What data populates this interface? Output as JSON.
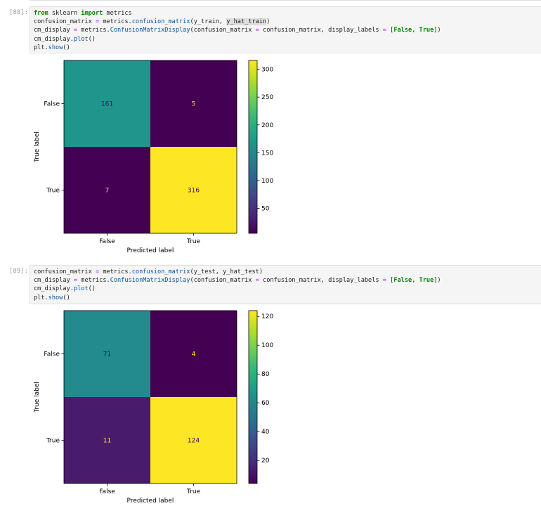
{
  "cells": [
    {
      "prompt": "[88]:",
      "code": [
        [
          [
            "kw",
            "from"
          ],
          [
            "t",
            " sklearn "
          ],
          [
            "kw",
            "import"
          ],
          [
            "t",
            " metrics"
          ]
        ],
        [
          [
            "t",
            "confusion_matrix "
          ],
          [
            "op",
            "="
          ],
          [
            "t",
            " metrics."
          ],
          [
            "fn",
            "confusion_matrix"
          ],
          [
            "t",
            "(y_train, "
          ],
          [
            "hl",
            "y_hat_train"
          ],
          [
            "t",
            ")"
          ]
        ],
        [
          [
            "t",
            "cm_display "
          ],
          [
            "op",
            "="
          ],
          [
            "t",
            " metrics."
          ],
          [
            "fn",
            "ConfusionMatrixDisplay"
          ],
          [
            "t",
            "(confusion_matrix "
          ],
          [
            "op",
            "="
          ],
          [
            "t",
            " confusion_matrix, display_labels "
          ],
          [
            "op",
            "="
          ],
          [
            "t",
            " ["
          ],
          [
            "kw",
            "False"
          ],
          [
            "t",
            ", "
          ],
          [
            "kw",
            "True"
          ],
          [
            "t",
            "])"
          ]
        ],
        [
          [
            "t",
            "cm_display."
          ],
          [
            "fn",
            "plot"
          ],
          [
            "t",
            "()"
          ]
        ],
        [
          [
            "t",
            "plt."
          ],
          [
            "fn",
            "show"
          ],
          [
            "t",
            "()"
          ]
        ]
      ]
    },
    {
      "prompt": "[89]:",
      "code": [
        [
          [
            "t",
            "confusion_matrix "
          ],
          [
            "op",
            "="
          ],
          [
            "t",
            " metrics."
          ],
          [
            "fn",
            "confusion_matrix"
          ],
          [
            "t",
            "(y_test, y_hat_test)"
          ]
        ],
        [
          [
            "t",
            "cm_display "
          ],
          [
            "op",
            "="
          ],
          [
            "t",
            " metrics."
          ],
          [
            "fn",
            "ConfusionMatrixDisplay"
          ],
          [
            "t",
            "(confusion_matrix "
          ],
          [
            "op",
            "="
          ],
          [
            "t",
            " confusion_matrix, display_labels "
          ],
          [
            "op",
            "="
          ],
          [
            "t",
            " ["
          ],
          [
            "kw",
            "False"
          ],
          [
            "t",
            ", "
          ],
          [
            "kw",
            "True"
          ],
          [
            "t",
            "])"
          ]
        ],
        [
          [
            "t",
            "cm_display."
          ],
          [
            "fn",
            "plot"
          ],
          [
            "t",
            "()"
          ]
        ],
        [
          [
            "t",
            "plt."
          ],
          [
            "fn",
            "show"
          ],
          [
            "t",
            "()"
          ]
        ]
      ]
    }
  ],
  "chart_data": [
    {
      "type": "heatmap",
      "xlabel": "Predicted label",
      "ylabel": "True label",
      "x_tick_labels": [
        "False",
        "True"
      ],
      "y_tick_labels": [
        "False",
        "True"
      ],
      "values": [
        [
          161,
          5
        ],
        [
          7,
          316
        ]
      ],
      "cell_colors": [
        [
          "#1f968b",
          "#440154"
        ],
        [
          "#440154",
          "#fde725"
        ]
      ],
      "text_colors": [
        [
          "#440154",
          "#fde725"
        ],
        [
          "#fde725",
          "#440154"
        ]
      ],
      "colorbar": {
        "ticks": [
          50,
          100,
          150,
          200,
          250,
          300
        ],
        "range": [
          5,
          316
        ]
      }
    },
    {
      "type": "heatmap",
      "xlabel": "Predicted label",
      "ylabel": "True label",
      "x_tick_labels": [
        "False",
        "True"
      ],
      "y_tick_labels": [
        "False",
        "True"
      ],
      "values": [
        [
          71,
          4
        ],
        [
          11,
          124
        ]
      ],
      "cell_colors": [
        [
          "#238a8d",
          "#440154"
        ],
        [
          "#481b6d",
          "#fde725"
        ]
      ],
      "text_colors": [
        [
          "#440154",
          "#fde725"
        ],
        [
          "#fde725",
          "#440154"
        ]
      ],
      "colorbar": {
        "ticks": [
          20,
          40,
          60,
          80,
          100,
          120
        ],
        "range": [
          4,
          124
        ]
      }
    }
  ]
}
